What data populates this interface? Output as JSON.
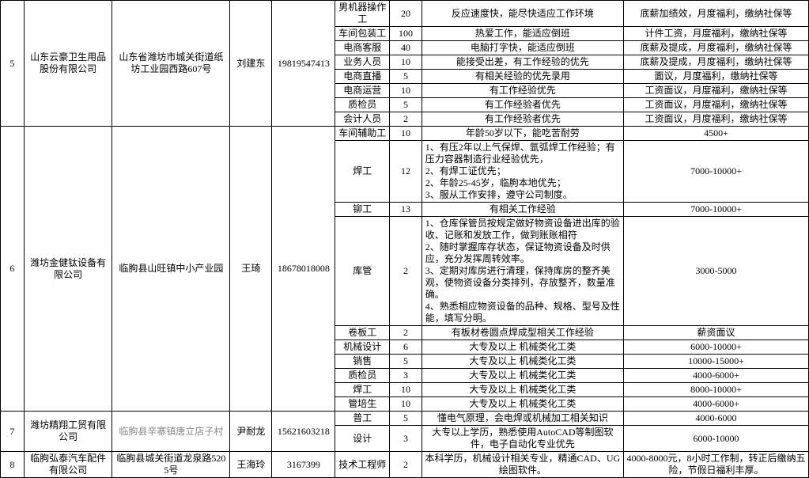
{
  "cols": [
    28,
    105,
    140,
    50,
    75,
    65,
    38,
    240,
    220
  ],
  "companies": [
    {
      "idx": "5",
      "name": "山东云豪卫生用品股份有限公司",
      "addr": "山东省潍坊市城关街道纸坊工业园西路607号",
      "contact": "刘建东",
      "phone": "19819547413",
      "rows": [
        {
          "job": "男机器操作工",
          "qty": "20",
          "req": "反应速度快，能尽快适应工作环境",
          "sal": "底薪加绩效，月度福利，缴纳社保等"
        },
        {
          "job": "车间包装工",
          "qty": "100",
          "req": "热爱工作，能适应倒班",
          "sal": "计件工资，月度福利，缴纳社保等"
        },
        {
          "job": "电商客服",
          "qty": "40",
          "req": "电脑打字快，能适应倒班",
          "sal": "底薪及提成，月度福利，缴纳社保等"
        },
        {
          "job": "业务人员",
          "qty": "10",
          "req": "能接受出差，有工作经验的优先",
          "sal": "底薪及提成，月度福利，缴纳社保等"
        },
        {
          "job": "电商直播",
          "qty": "5",
          "req": "有相关经验的优先录用",
          "sal": "面议，月度福利，缴纳社保等"
        },
        {
          "job": "电商运营",
          "qty": "10",
          "req": "有工作经验优先",
          "sal": "工资面议，月度福利，缴纳社保等"
        },
        {
          "job": "质检员",
          "qty": "5",
          "req": "有工作经验者优先",
          "sal": "工资面议，月度福利，缴纳社保等"
        },
        {
          "job": "会计人员",
          "qty": "2",
          "req": "有工作经验者优先",
          "sal": "工资面议，月度福利，缴纳社保等"
        }
      ]
    },
    {
      "idx": "6",
      "name": "潍坊金健钛设备有限公司",
      "addr": "临朐县山旺镇中小产业园",
      "contact": "王琦",
      "phone": "18678018008",
      "rows": [
        {
          "job": "车间辅助工",
          "qty": "10",
          "req": "年龄50岁以下，能吃苦耐劳",
          "sal": "4500+"
        },
        {
          "job": "焊工",
          "qty": "12",
          "req": "1、有压2年以上气保焊、氩弧焊工作经验；有压力容器制造行业经验优先，\n2、有焊工证优先；\n2、年龄25-45岁，临朐本地优先；\n3、服从工作安排，遵守公司制度。",
          "sal": "7000-10000+",
          "reqAlign": "left"
        },
        {
          "job": "铆工",
          "qty": "13",
          "req": "有相关工作经验",
          "sal": "7000-10000+"
        },
        {
          "job": "库管",
          "qty": "2",
          "req": "1、仓库保管员按规定做好物资设备进出库的验收、记账和发放工作，做到账账相符\n2、随时掌握库存状态，保证物资设备及时供应，充分发挥周转效率。\n3、定期对库房进行清理，保持库房的整齐美观，使物资设备分类排列，存放整齐，数量准确。\n4、熟悉相应物资设备的品种、规格、型号及性能，填写分明。",
          "sal": "3000-5000",
          "reqAlign": "left"
        },
        {
          "job": "卷板工",
          "qty": "2",
          "req": "有板材卷圆点焊成型相关工作经验",
          "sal": "薪资面议"
        },
        {
          "job": "机械设计",
          "qty": "6",
          "req": "大专及以上 机械类化工类",
          "sal": "6000-10000+"
        },
        {
          "job": "销售",
          "qty": "5",
          "req": "大专及以上 机械类化工类",
          "sal": "10000-15000+"
        },
        {
          "job": "质检员",
          "qty": "3",
          "req": "大专及以上 机械类化工类",
          "sal": "4000-6000+"
        },
        {
          "job": "焊工",
          "qty": "10",
          "req": "大专及以上 机械类化工类",
          "sal": "8000-10000+"
        },
        {
          "job": "管培生",
          "qty": "10",
          "req": "大专及以上 机械类化工类",
          "sal": "4000-6000+"
        }
      ]
    },
    {
      "idx": "7",
      "name": "潍坊精翔工贸有限公司",
      "addr": "临朐县辛寨镇唐立店子村",
      "addrClass": "gray",
      "contact": "尹耐龙",
      "phone": "15621603218",
      "rows": [
        {
          "job": "普工",
          "qty": "5",
          "req": "懂电气原理，会电焊或机械加工相关知识",
          "sal": "4000-6000"
        },
        {
          "job": "设计",
          "qty": "3",
          "req": "大专以上学历，熟悉使用AutoCAD等制图软件，电子自动化专业优先",
          "sal": "6000-10000"
        }
      ]
    },
    {
      "idx": "8",
      "name": "临朐弘泰汽车配件有限公司",
      "addr": "临朐县城关街道龙泉路5205号",
      "contact": "王海玲",
      "phone": "3167399",
      "rows": [
        {
          "job": "技术工程师",
          "qty": "2",
          "req": "本科学历，机械设计相关专业，精通CAD、UG绘图软件。",
          "sal": "4000-8000元，8小时工作制，转正后缴纳五险，节假日福利丰厚。"
        }
      ]
    }
  ]
}
